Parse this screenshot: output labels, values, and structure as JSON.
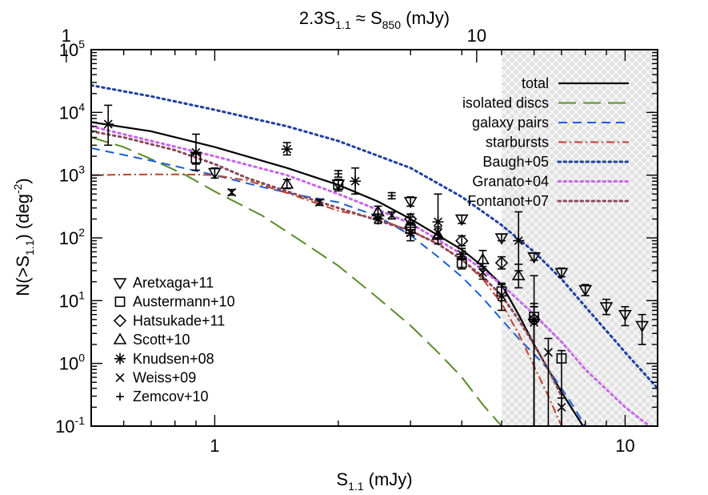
{
  "chart_data": {
    "type": "line",
    "title": "",
    "top_axis": {
      "title_main": "2.3S",
      "title_sub": "1.1",
      "title_mid": " ≈ S",
      "title_sub2": "850",
      "title_unit": " (mJy)",
      "tick_labels": [
        {
          "label": "1",
          "s850": 1
        },
        {
          "label": "10",
          "s850": 10
        }
      ]
    },
    "x_axis": {
      "title_main": "S",
      "title_sub": "1.1",
      "title_unit": " (mJy)",
      "scale": "log",
      "range": [
        0.5,
        12.0
      ],
      "tick_labels": [
        {
          "label": "1",
          "value": 1
        },
        {
          "label": "10",
          "value": 10
        }
      ]
    },
    "y_axis": {
      "title_main": "N(>S",
      "title_sub": "1.1",
      "title_mid": ") (deg",
      "title_sup": "-2",
      "title_end": ")",
      "scale": "log",
      "range": [
        0.1,
        100000
      ],
      "tick_labels": [
        {
          "base": "10",
          "exp": "5",
          "value": 100000
        },
        {
          "base": "10",
          "exp": "4",
          "value": 10000
        },
        {
          "base": "10",
          "exp": "3",
          "value": 1000
        },
        {
          "base": "10",
          "exp": "2",
          "value": 100
        },
        {
          "base": "10",
          "exp": "1",
          "value": 10
        },
        {
          "base": "10",
          "exp": "0",
          "value": 1
        },
        {
          "base": "10",
          "exp": "-1",
          "value": 0.1
        }
      ]
    },
    "shaded_region": {
      "x_start": 5.0,
      "x_end": 12.0,
      "color": "#d9d9d9"
    },
    "series": [
      {
        "name": "total",
        "color": "#000000",
        "dash": "solid",
        "x": [
          0.5,
          0.7,
          1.0,
          1.5,
          2.0,
          2.5,
          3.0,
          3.5,
          4.0,
          4.5,
          5.0,
          5.5,
          6.0,
          6.5,
          7.0,
          7.5,
          7.9
        ],
        "y": [
          7000,
          5000,
          2800,
          1300,
          700,
          380,
          200,
          110,
          65,
          35,
          18,
          6,
          2.0,
          0.8,
          0.35,
          0.17,
          0.1
        ]
      },
      {
        "name": "isolated discs",
        "color": "#5a8a2a",
        "dash": "long",
        "x": [
          0.5,
          0.6,
          0.7,
          0.85,
          1.0,
          1.3,
          1.6,
          2.0,
          2.5,
          3.0,
          3.5,
          4.0,
          4.5,
          5.0
        ],
        "y": [
          4000,
          2800,
          1800,
          1000,
          550,
          230,
          95,
          36,
          11,
          4,
          1.5,
          0.6,
          0.22,
          0.1
        ]
      },
      {
        "name": "galaxy pairs",
        "color": "#1a5fd6",
        "dash": "medium",
        "x": [
          0.5,
          0.7,
          1.0,
          1.3,
          1.6,
          2.0,
          2.5,
          3.0,
          3.5,
          4.0,
          4.5,
          5.0,
          5.5,
          6.0,
          6.5,
          7.0,
          7.5,
          8.0
        ],
        "y": [
          2700,
          1700,
          1000,
          650,
          480,
          370,
          220,
          110,
          50,
          24,
          11,
          5,
          2.5,
          1.4,
          0.8,
          0.4,
          0.2,
          0.1
        ]
      },
      {
        "name": "starbursts",
        "color": "#c0402a",
        "dash": "dashdot",
        "x": [
          0.5,
          0.6,
          0.7,
          0.8,
          0.9,
          1.0,
          1.2,
          1.5,
          2.0,
          2.5,
          3.0,
          3.5,
          4.0,
          4.5,
          5.0,
          5.5,
          6.0,
          6.5,
          7.0
        ],
        "y": [
          1000,
          1020,
          1030,
          1030,
          1020,
          1000,
          820,
          520,
          270,
          200,
          130,
          80,
          45,
          22,
          9,
          3,
          0.9,
          0.3,
          0.1
        ]
      },
      {
        "name": "Baugh+05",
        "color": "#1f3f9f",
        "dash": "dotted",
        "x": [
          0.5,
          0.7,
          1.0,
          1.5,
          2.0,
          3.0,
          4.0,
          5.0,
          6.0,
          7.0,
          8.0,
          10.0,
          12.0
        ],
        "y": [
          27000,
          18000,
          11000,
          6000,
          3500,
          1300,
          450,
          160,
          60,
          22,
          8,
          1.5,
          0.4
        ]
      },
      {
        "name": "Granato+04",
        "color": "#c866e8",
        "dash": "dotted",
        "x": [
          0.5,
          0.7,
          1.0,
          1.5,
          2.0,
          2.5,
          3.0,
          4.0,
          5.0,
          6.0,
          7.0,
          8.0,
          10.0,
          12.0
        ],
        "y": [
          6000,
          3500,
          2000,
          1000,
          500,
          280,
          170,
          55,
          18,
          6,
          2.2,
          0.8,
          0.2,
          0.08
        ]
      },
      {
        "name": "Fontanot+07",
        "color": "#8a4a5a",
        "dash": "dotted",
        "x": [
          0.5,
          0.6,
          0.8,
          1.0,
          1.2,
          1.5,
          2.0,
          2.5,
          3.0,
          3.5,
          4.0,
          4.5,
          5.0,
          5.5,
          6.0,
          6.5,
          7.0
        ],
        "y": [
          5000,
          4000,
          2500,
          1500,
          900,
          550,
          300,
          190,
          130,
          80,
          45,
          24,
          12,
          5,
          2,
          0.8,
          0.3
        ]
      }
    ],
    "legend": {
      "placement": "top-right",
      "entries": [
        "total",
        "isolated discs",
        "galaxy pairs",
        "starbursts",
        "Baugh+05",
        "Granato+04",
        "Fontanot+07"
      ]
    },
    "symbol_legend": {
      "placement": "bottom-left",
      "entries": [
        {
          "symbol": "tri-down",
          "name": "Aretxaga+11"
        },
        {
          "symbol": "square",
          "name": "Austermann+10"
        },
        {
          "symbol": "diamond",
          "name": "Hatsukade+11"
        },
        {
          "symbol": "tri-up",
          "name": "Scott+10"
        },
        {
          "symbol": "asterisk",
          "name": "Knudsen+08"
        },
        {
          "symbol": "cross",
          "name": "Weiss+09"
        },
        {
          "symbol": "plus",
          "name": "Zemcov+10"
        }
      ]
    },
    "data_points": [
      {
        "dataset": "Aretxaga+11",
        "symbol": "tri-down",
        "points": [
          {
            "x": 1.0,
            "y": 1100,
            "lo": 900,
            "hi": 1300
          },
          {
            "x": 2.0,
            "y": 720,
            "lo": 600,
            "hi": 850
          },
          {
            "x": 3.0,
            "y": 380,
            "lo": 320,
            "hi": 450
          },
          {
            "x": 4.0,
            "y": 200,
            "lo": 170,
            "hi": 230
          },
          {
            "x": 5.0,
            "y": 100,
            "lo": 90,
            "hi": 115
          },
          {
            "x": 6.0,
            "y": 50,
            "lo": 44,
            "hi": 57
          },
          {
            "x": 7.0,
            "y": 28,
            "lo": 24,
            "hi": 33
          },
          {
            "x": 8.0,
            "y": 15,
            "lo": 12,
            "hi": 18
          },
          {
            "x": 9.0,
            "y": 8,
            "lo": 6,
            "hi": 10.5
          },
          {
            "x": 10.0,
            "y": 6,
            "lo": 4,
            "hi": 8
          },
          {
            "x": 11.0,
            "y": 4,
            "lo": 2.0,
            "hi": 6
          }
        ]
      },
      {
        "dataset": "Austermann+10",
        "symbol": "square",
        "points": [
          {
            "x": 0.9,
            "y": 1850,
            "lo": 1500,
            "hi": 2200
          },
          {
            "x": 2.0,
            "y": 700,
            "lo": 560,
            "hi": 860
          },
          {
            "x": 3.0,
            "y": 140,
            "lo": 110,
            "hi": 175
          },
          {
            "x": 4.0,
            "y": 40,
            "lo": 32,
            "hi": 50
          },
          {
            "x": 5.0,
            "y": 14,
            "lo": 10,
            "hi": 19
          },
          {
            "x": 6.0,
            "y": 5.5,
            "lo": 0.1,
            "hi": 8
          },
          {
            "x": 7.0,
            "y": 1.2,
            "lo": 0.1,
            "hi": 1.6
          }
        ]
      },
      {
        "dataset": "Hatsukade+11",
        "symbol": "diamond",
        "points": [
          {
            "x": 3.0,
            "y": 200,
            "lo": 170,
            "hi": 240
          },
          {
            "x": 4.0,
            "y": 90,
            "lo": 75,
            "hi": 108
          },
          {
            "x": 5.0,
            "y": 40,
            "lo": 32,
            "hi": 50
          },
          {
            "x": 6.0,
            "y": 5,
            "lo": 0.1,
            "hi": 9
          }
        ]
      },
      {
        "dataset": "Scott+10",
        "symbol": "tri-up",
        "points": [
          {
            "x": 1.5,
            "y": 720,
            "lo": 610,
            "hi": 850
          },
          {
            "x": 2.5,
            "y": 260,
            "lo": 210,
            "hi": 320
          },
          {
            "x": 3.0,
            "y": 170,
            "lo": 135,
            "hi": 215
          },
          {
            "x": 3.5,
            "y": 110,
            "lo": 80,
            "hi": 150
          },
          {
            "x": 4.5,
            "y": 45,
            "lo": 32,
            "hi": 63
          },
          {
            "x": 5.5,
            "y": 25,
            "lo": 16,
            "hi": 38
          }
        ]
      },
      {
        "dataset": "Knudsen+08",
        "symbol": "asterisk",
        "points": [
          {
            "x": 0.55,
            "y": 6500,
            "lo": 3000,
            "hi": 13000
          },
          {
            "x": 0.9,
            "y": 2300,
            "lo": 1200,
            "hi": 4500
          },
          {
            "x": 1.5,
            "y": 2600,
            "lo": 2100,
            "hi": 3300
          },
          {
            "x": 2.2,
            "y": 800,
            "lo": 500,
            "hi": 1300
          },
          {
            "x": 2.5,
            "y": 200,
            "lo": 170,
            "hi": 240
          },
          {
            "x": 3.0,
            "y": 120,
            "lo": 90,
            "hi": 160
          },
          {
            "x": 3.5,
            "y": 180,
            "lo": 100,
            "hi": 500
          },
          {
            "x": 4.0,
            "y": 55,
            "lo": 45,
            "hi": 68
          },
          {
            "x": 5.5,
            "y": 90,
            "lo": 30,
            "hi": 260
          },
          {
            "x": 6.0,
            "y": 5,
            "lo": 0.1,
            "hi": 25
          }
        ]
      },
      {
        "dataset": "Weiss+09",
        "symbol": "cross",
        "points": [
          {
            "x": 1.1,
            "y": 530,
            "lo": 480,
            "hi": 590
          },
          {
            "x": 1.8,
            "y": 370,
            "lo": 330,
            "hi": 410
          },
          {
            "x": 2.7,
            "y": 230,
            "lo": 200,
            "hi": 260
          },
          {
            "x": 3.5,
            "y": 120,
            "lo": 100,
            "hi": 140
          },
          {
            "x": 4.5,
            "y": 28,
            "lo": 22,
            "hi": 35
          },
          {
            "x": 5.0,
            "y": 12,
            "lo": 7,
            "hi": 18
          },
          {
            "x": 6.0,
            "y": 4.5,
            "lo": 0.1,
            "hi": 8
          },
          {
            "x": 6.5,
            "y": 1.5,
            "lo": 0.1,
            "hi": 2.5
          },
          {
            "x": 7.0,
            "y": 0.2,
            "lo": 0.1,
            "hi": 0.28
          }
        ]
      },
      {
        "dataset": "Zemcov+10",
        "symbol": "plus",
        "points": [
          {
            "x": 2.0,
            "y": 1050,
            "lo": 930,
            "hi": 1180
          },
          {
            "x": 2.7,
            "y": 470,
            "lo": 420,
            "hi": 525
          }
        ]
      }
    ]
  }
}
